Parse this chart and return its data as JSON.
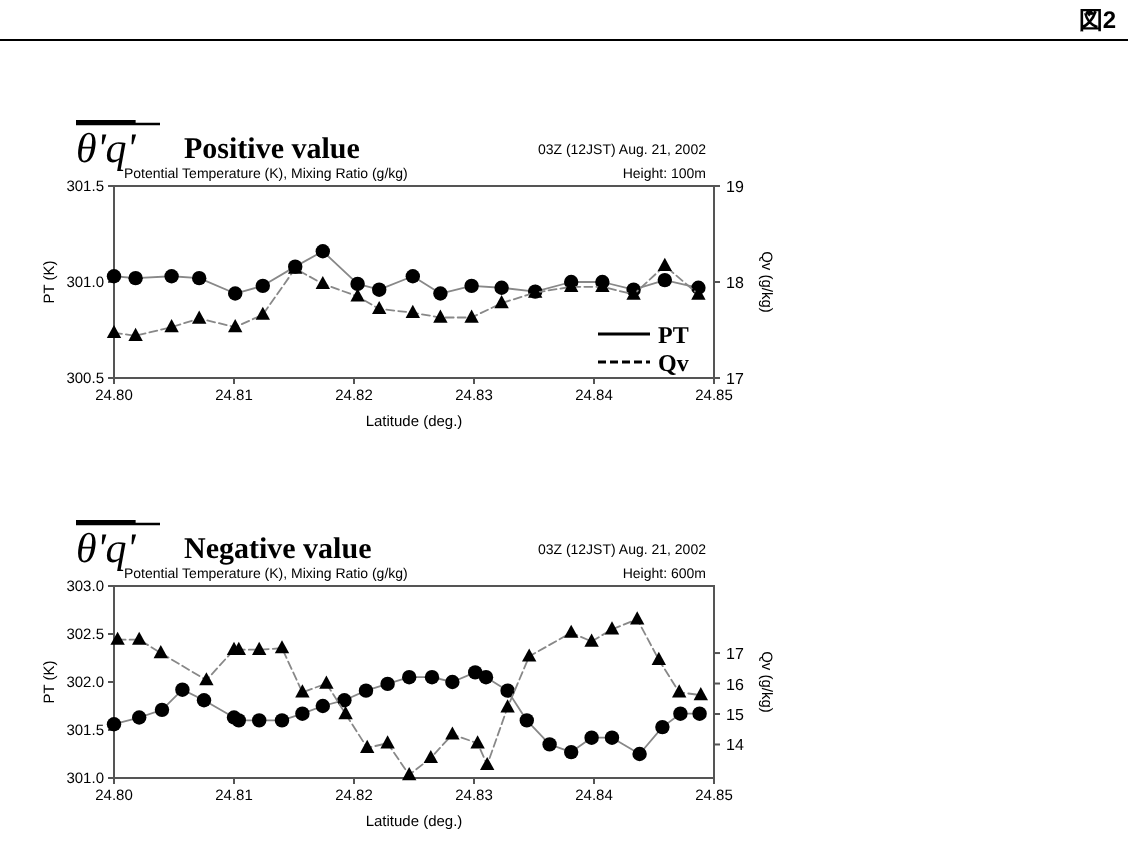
{
  "chart_data": [
    {
      "type": "line",
      "title": "θ'q'",
      "subtitle": "Positive value",
      "annotations": [
        "図2",
        "03Z (12JST) Aug. 21, 2002",
        "Potential Temperature (K), Mixing Ratio (g/kg)",
        "Height: 100m"
      ],
      "xlabel": "Latitude (deg.)",
      "ylabel": "PT (K)",
      "y2label": "Qv (g/kg)",
      "xlim": [
        24.8,
        24.85
      ],
      "xticks": [
        {
          "value": 24.8,
          "label": "24.80"
        },
        {
          "value": 24.81,
          "label": "24.81"
        },
        {
          "value": 24.82,
          "label": "24.82"
        },
        {
          "value": 24.83,
          "label": "24.83"
        },
        {
          "value": 24.84,
          "label": "24.84"
        },
        {
          "value": 24.85,
          "label": "24.85"
        }
      ],
      "ylim": [
        300.5,
        301.5
      ],
      "yticks": [
        {
          "value": 300.5,
          "label": "300.5"
        },
        {
          "value": 301.0,
          "label": "301.0"
        },
        {
          "value": 301.5,
          "label": "301.5"
        }
      ],
      "y2lim": [
        17,
        19
      ],
      "y2ticks": [
        17,
        18,
        19
      ],
      "legend": "bottom right",
      "grid": false,
      "series": [
        {
          "name": "PT",
          "color": "#000000",
          "marker": "circle",
          "line_style": "solid",
          "x": [
            24.8,
            24.8018,
            24.8048,
            24.8071,
            24.8101,
            24.8124,
            24.8151,
            24.8174,
            24.8203,
            24.8221,
            24.8249,
            24.8272,
            24.8298,
            24.8323,
            24.8351,
            24.8381,
            24.8407,
            24.8433,
            24.8459,
            24.8487
          ],
          "values": [
            301.03,
            301.02,
            301.03,
            301.02,
            300.94,
            300.98,
            301.08,
            301.16,
            300.99,
            300.96,
            301.03,
            300.94,
            300.98,
            300.97,
            300.95,
            301.0,
            301.0,
            300.96,
            301.01,
            300.97
          ]
        },
        {
          "name": "Qv",
          "color": "#000000",
          "marker": "triangle",
          "line_style": "dashed",
          "axis": "y2",
          "x": [
            24.8,
            24.8018,
            24.8048,
            24.8071,
            24.8101,
            24.8124,
            24.8151,
            24.8174,
            24.8203,
            24.8221,
            24.8249,
            24.8272,
            24.8298,
            24.8323,
            24.8351,
            24.8381,
            24.8407,
            24.8433,
            24.8459,
            24.8487
          ],
          "values": [
            17.47,
            17.44,
            17.53,
            17.62,
            17.53,
            17.66,
            18.14,
            17.98,
            17.85,
            17.72,
            17.68,
            17.63,
            17.63,
            17.78,
            17.89,
            17.95,
            17.95,
            17.87,
            18.17,
            17.87
          ]
        }
      ]
    },
    {
      "type": "line",
      "title": "θ'q'",
      "subtitle": "Negative value",
      "annotations": [
        "03Z (12JST) Aug. 21, 2002",
        "Potential Temperature (K), Mixing Ratio (g/kg)",
        "Height: 600m"
      ],
      "xlabel": "Latitude (deg.)",
      "ylabel": "PT (K)",
      "y2label": "Qv (g/kg)",
      "xlim": [
        24.8,
        24.85
      ],
      "xticks": [
        {
          "value": 24.8,
          "label": "24.80"
        },
        {
          "value": 24.81,
          "label": "24.81"
        },
        {
          "value": 24.82,
          "label": "24.82"
        },
        {
          "value": 24.83,
          "label": "24.83"
        },
        {
          "value": 24.84,
          "label": "24.84"
        },
        {
          "value": 24.85,
          "label": "24.85"
        }
      ],
      "ylim": [
        301.0,
        303.0
      ],
      "yticks": [
        {
          "value": 301.0,
          "label": "301.0"
        },
        {
          "value": 301.5,
          "label": "301.5"
        },
        {
          "value": 302.0,
          "label": "302.0"
        },
        {
          "value": 302.5,
          "label": "302.5"
        },
        {
          "value": 303.0,
          "label": "303.0"
        }
      ],
      "y2lim": [
        12.9,
        19.2
      ],
      "y2ticks": [
        14,
        15,
        16,
        17
      ],
      "legend": false,
      "grid": false,
      "series": [
        {
          "color": "#000000",
          "marker": "circle",
          "line_style": "solid",
          "x": [
            24.8,
            24.8021,
            24.804,
            24.8057,
            24.8075,
            24.81,
            24.8104,
            24.8121,
            24.814,
            24.8157,
            24.8174,
            24.8192,
            24.821,
            24.8228,
            24.8246,
            24.8265,
            24.8282,
            24.8301,
            24.831,
            24.8328,
            24.8344,
            24.8363,
            24.8381,
            24.8398,
            24.8415,
            24.8438,
            24.8457,
            24.8472,
            24.8488
          ],
          "values": [
            301.56,
            301.63,
            301.71,
            301.92,
            301.81,
            301.63,
            301.6,
            301.6,
            301.6,
            301.67,
            301.75,
            301.81,
            301.91,
            301.98,
            302.05,
            302.05,
            302.0,
            302.1,
            302.05,
            301.91,
            301.6,
            301.35,
            301.27,
            301.42,
            301.42,
            301.25,
            301.53,
            301.67,
            301.67
          ]
        },
        {
          "color": "#000000",
          "marker": "triangle",
          "line_style": "dashed",
          "axis": "y2",
          "x": [
            24.8003,
            24.8021,
            24.8039,
            24.8077,
            24.81,
            24.8104,
            24.8121,
            24.814,
            24.8157,
            24.8177,
            24.8193,
            24.8211,
            24.8228,
            24.8246,
            24.8264,
            24.8282,
            24.8303,
            24.8311,
            24.8328,
            24.8346,
            24.8381,
            24.8398,
            24.8415,
            24.8436,
            24.8454,
            24.8471,
            24.8489
          ],
          "values": [
            17.44,
            17.44,
            17.0,
            16.11,
            17.11,
            17.11,
            17.11,
            17.16,
            15.71,
            16.0,
            15.0,
            13.89,
            14.04,
            13.0,
            13.56,
            14.33,
            14.04,
            13.33,
            15.22,
            16.89,
            17.67,
            17.38,
            17.78,
            18.11,
            16.78,
            15.71,
            15.62
          ]
        }
      ]
    }
  ]
}
